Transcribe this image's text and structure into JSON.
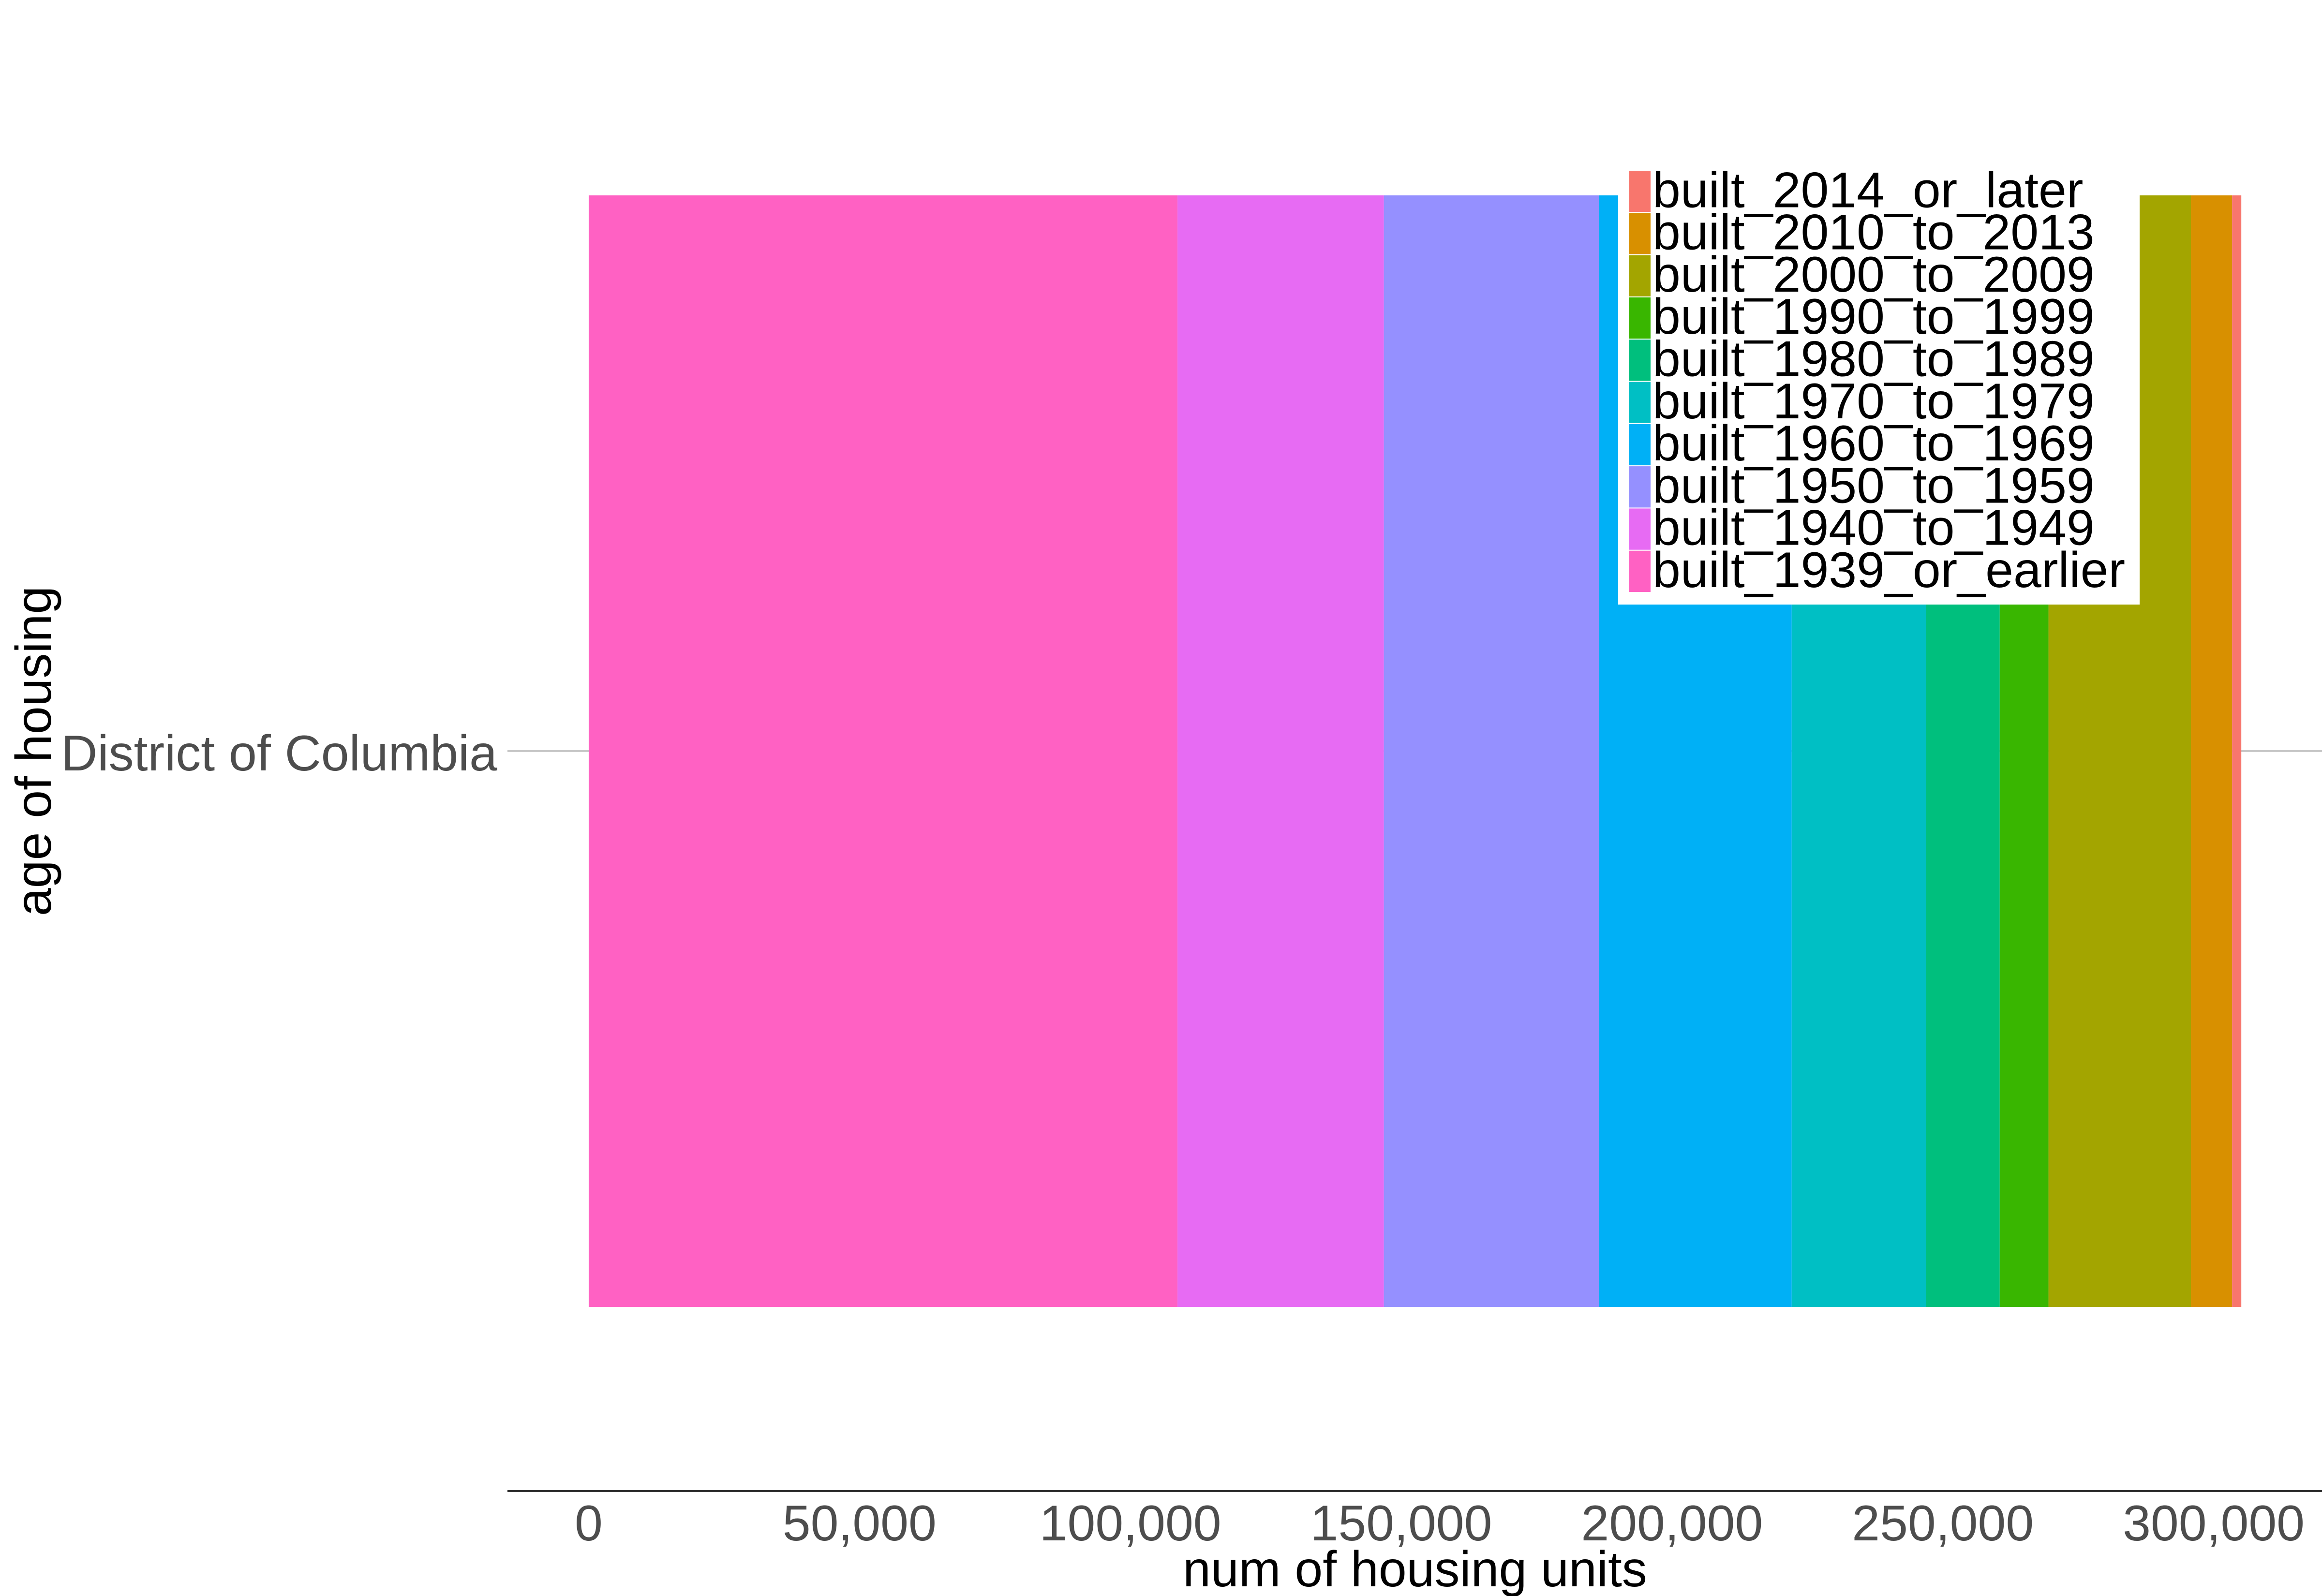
{
  "chart_data": {
    "type": "bar",
    "orientation": "horizontal",
    "stacked": true,
    "categories": [
      "District of Columbia"
    ],
    "xlabel": "num of housing units",
    "ylabel": "age of housing",
    "xlim": [
      -15000,
      320000
    ],
    "xticks": [
      0,
      50000,
      100000,
      150000,
      200000,
      250000,
      300000
    ],
    "xtick_labels": [
      "0",
      "50,000",
      "100,000",
      "150,000",
      "200,000",
      "250,000",
      "300,000"
    ],
    "grid": false,
    "legend_position": "top-right",
    "series": [
      {
        "name": "built_1939_or_earlier",
        "values": [
          108700
        ],
        "color": "#FF61C3"
      },
      {
        "name": "built_1940_to_1949",
        "values": [
          38100
        ],
        "color": "#E76BF3"
      },
      {
        "name": "built_1950_to_1959",
        "values": [
          39700
        ],
        "color": "#9590FF"
      },
      {
        "name": "built_1960_to_1969",
        "values": [
          35600
        ],
        "color": "#00B0F6"
      },
      {
        "name": "built_1970_to_1979",
        "values": [
          24800
        ],
        "color": "#00BFC4"
      },
      {
        "name": "built_1980_to_1989",
        "values": [
          13600
        ],
        "color": "#00BF7D"
      },
      {
        "name": "built_1990_to_1999",
        "values": [
          9000
        ],
        "color": "#39B600"
      },
      {
        "name": "built_2000_to_2009",
        "values": [
          26300
        ],
        "color": "#A3A500"
      },
      {
        "name": "built_2010_to_2013",
        "values": [
          7600
        ],
        "color": "#D89000"
      },
      {
        "name": "built_2014_or_later",
        "values": [
          1700
        ],
        "color": "#F8766D"
      }
    ],
    "legend_order": [
      "built_2014_or_later",
      "built_2010_to_2013",
      "built_2000_to_2009",
      "built_1990_to_1999",
      "built_1980_to_1989",
      "built_1970_to_1979",
      "built_1960_to_1969",
      "built_1950_to_1959",
      "built_1940_to_1949",
      "built_1939_or_earlier"
    ]
  }
}
